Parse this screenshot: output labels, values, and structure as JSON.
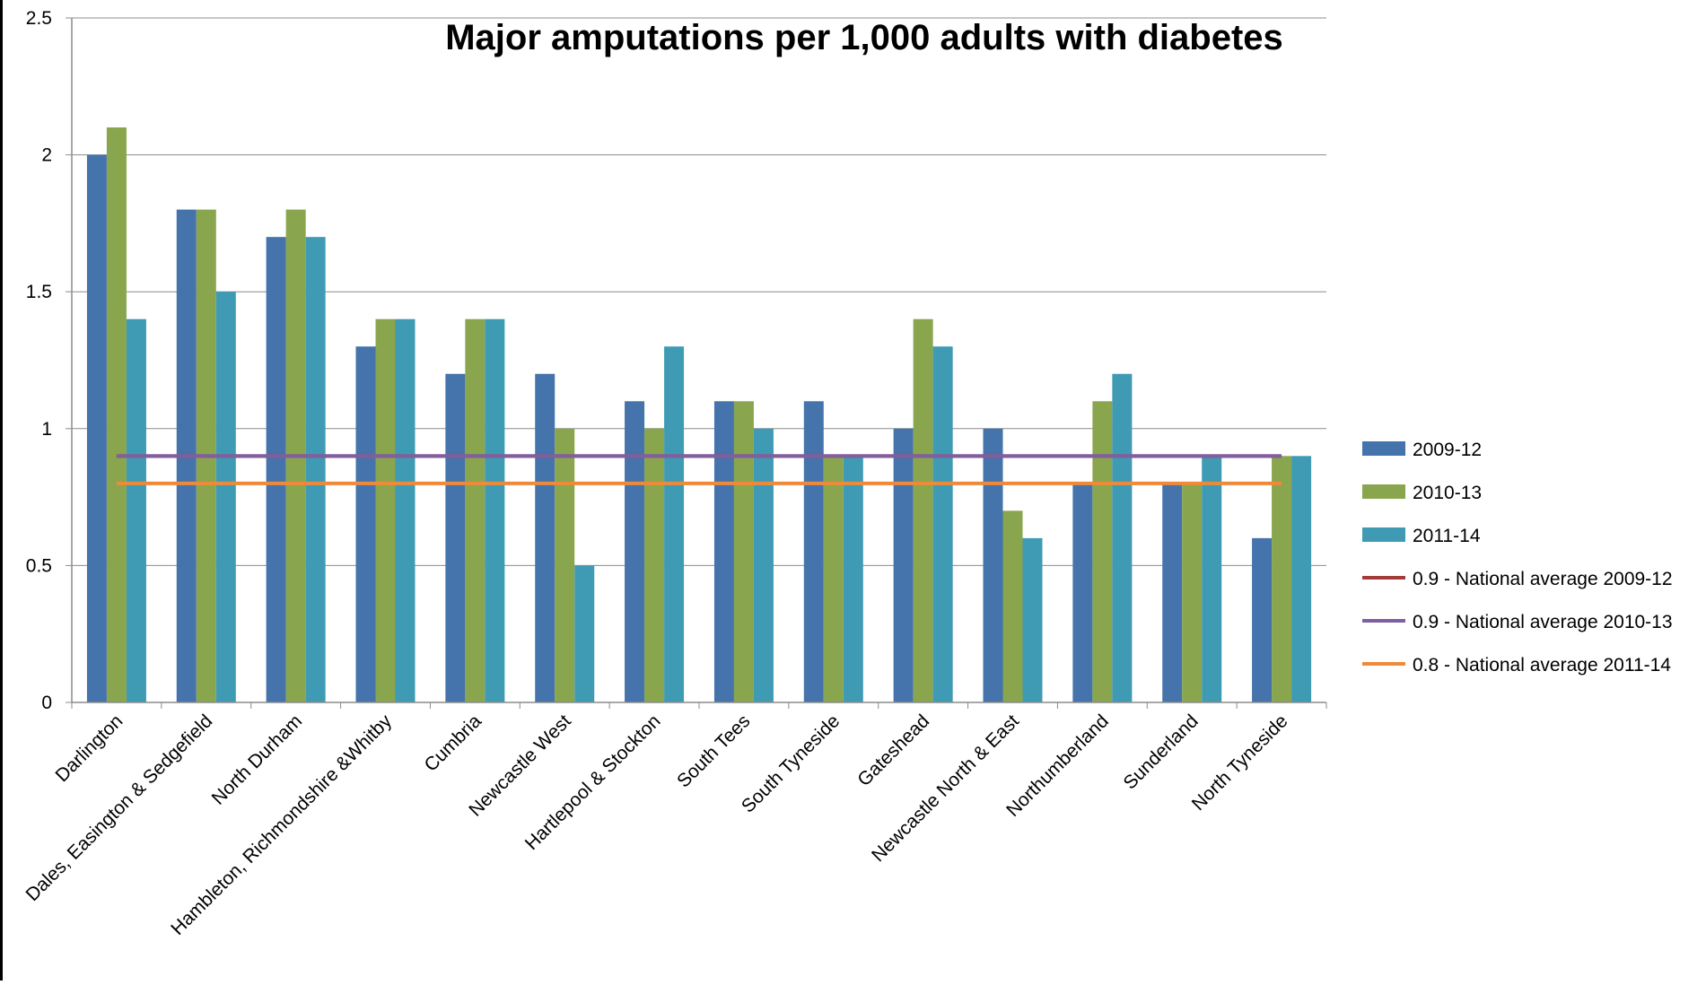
{
  "chart_data": {
    "type": "bar",
    "title": "Major amputations per 1,000 adults with diabetes",
    "xlabel": "",
    "ylabel": "",
    "ylim": [
      0,
      2.5
    ],
    "yticks": [
      "0",
      "0.5",
      "1",
      "1.5",
      "2",
      "2.5"
    ],
    "grid": true,
    "legend_position": "right",
    "categories": [
      "Darlington",
      "Dales, Easington & Sedgefield",
      "North Durham",
      "Hambleton, Richmondshire &Whitby",
      "Cumbria",
      "Newcastle West",
      "Hartlepool & Stockton",
      "South Tees",
      "South Tyneside",
      "Gateshead",
      "Newcastle North & East",
      "Northumberland",
      "Sunderland",
      "North Tyneside"
    ],
    "series": [
      {
        "name": "2009-12",
        "color": "#4573AB",
        "values": [
          2.0,
          1.8,
          1.7,
          1.3,
          1.2,
          1.2,
          1.1,
          1.1,
          1.1,
          1.0,
          1.0,
          0.8,
          0.8,
          0.6
        ]
      },
      {
        "name": "2010-13",
        "color": "#89A54E",
        "values": [
          2.1,
          1.8,
          1.8,
          1.4,
          1.4,
          1.0,
          1.0,
          1.1,
          0.9,
          1.4,
          0.7,
          1.1,
          0.8,
          0.9
        ]
      },
      {
        "name": "2011-14",
        "color": "#3F9BB4",
        "values": [
          1.4,
          1.5,
          1.7,
          1.4,
          1.4,
          0.5,
          1.3,
          1.0,
          0.9,
          1.3,
          0.6,
          1.2,
          0.9,
          0.9
        ]
      }
    ],
    "reference_lines": [
      {
        "name": "0.9 - National average 2009-12",
        "value": 0.9,
        "color": "#A23C3A"
      },
      {
        "name": "0.9 - National average 2010-13",
        "value": 0.9,
        "color": "#7F5FA0"
      },
      {
        "name": "0.8 - National average 2011-14",
        "value": 0.8,
        "color": "#EE8A3A"
      }
    ]
  }
}
